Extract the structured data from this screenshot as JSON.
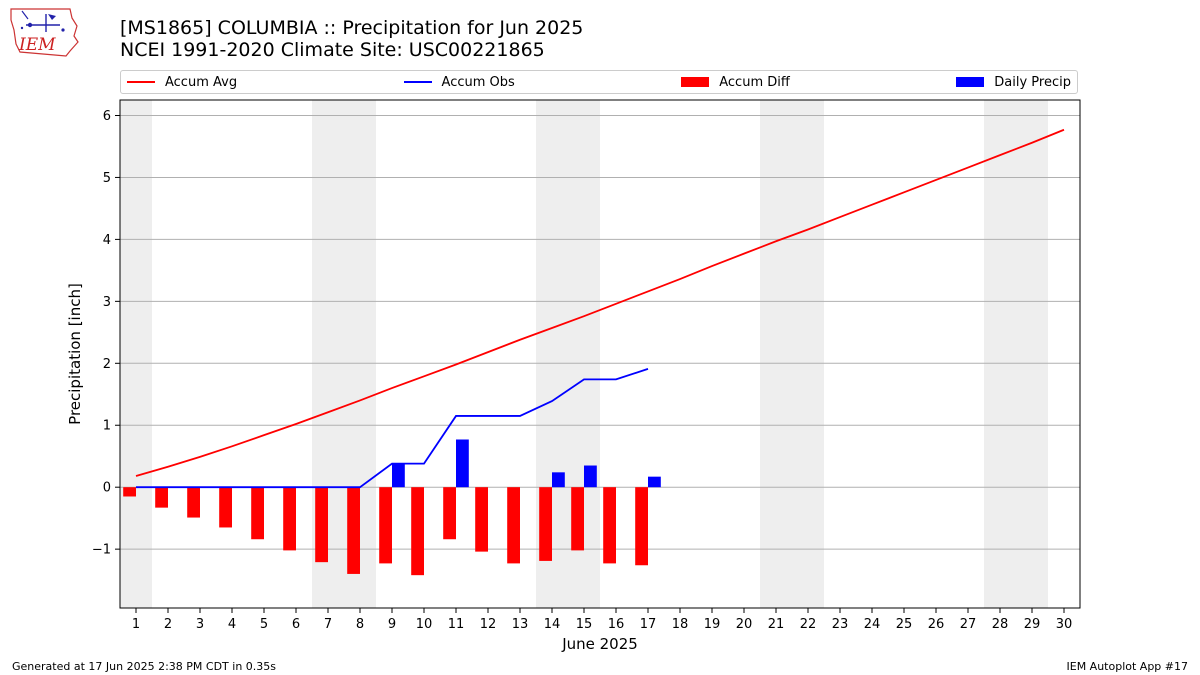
{
  "logo": {
    "text": "IEM",
    "icon": "iem-logo-icon"
  },
  "title": "[MS1865] COLUMBIA :: Precipitation for Jun 2025",
  "subtitle": "NCEI 1991-2020 Climate Site: USC00221865",
  "footer": {
    "left": "Generated at 17 Jun 2025 2:38 PM CDT in 0.35s",
    "right": "IEM Autoplot App #17"
  },
  "colors": {
    "accum_avg": "#ff0000",
    "accum_obs": "#0000ff",
    "accum_diff": "#ff0000",
    "daily_precip": "#0000ff",
    "weekend_shade": "#eeeeee",
    "grid": "#b0b0b0"
  },
  "chart_data": {
    "type": "bar",
    "xlabel": "June 2025",
    "ylabel": "Precipitation [inch]",
    "ylim": [
      -1.95,
      6.25
    ],
    "yticks": [
      -1,
      0,
      1,
      2,
      3,
      4,
      5,
      6
    ],
    "ytick_labels": [
      "−1",
      "0",
      "1",
      "2",
      "3",
      "4",
      "5",
      "6"
    ],
    "grid": "horizontal",
    "legend_position": "top",
    "days": [
      1,
      2,
      3,
      4,
      5,
      6,
      7,
      8,
      9,
      10,
      11,
      12,
      13,
      14,
      15,
      16,
      17,
      18,
      19,
      20,
      21,
      22,
      23,
      24,
      25,
      26,
      27,
      28,
      29,
      30
    ],
    "weekend_days": [
      1,
      7,
      8,
      14,
      15,
      21,
      22,
      28,
      29
    ],
    "series": [
      {
        "name": "Accum Avg",
        "kind": "line",
        "values": [
          0.18,
          0.33,
          0.49,
          0.66,
          0.84,
          1.02,
          1.21,
          1.4,
          1.6,
          1.79,
          1.98,
          2.18,
          2.38,
          2.57,
          2.76,
          2.96,
          3.16,
          3.36,
          3.57,
          3.77,
          3.97,
          4.16,
          4.36,
          4.56,
          4.76,
          4.96,
          5.16,
          5.36,
          5.56,
          5.77
        ]
      },
      {
        "name": "Accum Obs",
        "kind": "line",
        "values": [
          0.0,
          0.0,
          0.0,
          0.0,
          0.0,
          0.0,
          0.0,
          0.0,
          0.38,
          0.38,
          1.15,
          1.15,
          1.15,
          1.39,
          1.74,
          1.74,
          1.91
        ]
      },
      {
        "name": "Accum Diff",
        "kind": "bar",
        "values": [
          -0.15,
          -0.33,
          -0.49,
          -0.65,
          -0.84,
          -1.02,
          -1.21,
          -1.4,
          -1.23,
          -1.42,
          -0.84,
          -1.04,
          -1.23,
          -1.19,
          -1.02,
          -1.23,
          -1.26
        ]
      },
      {
        "name": "Daily Precip",
        "kind": "bar",
        "values": [
          0.0,
          0.0,
          0.0,
          0.0,
          0.0,
          0.0,
          0.0,
          0.0,
          0.38,
          0.0,
          0.77,
          0.0,
          0.0,
          0.24,
          0.35,
          0.0,
          0.17
        ]
      }
    ]
  }
}
